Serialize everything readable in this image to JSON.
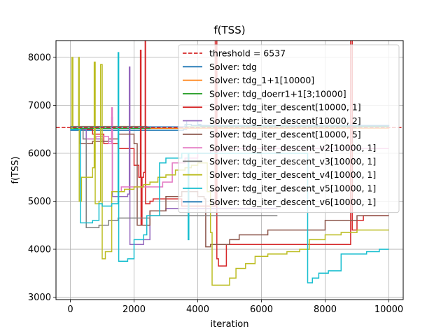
{
  "chart_data": {
    "type": "line",
    "title": "f(TSS)",
    "xlabel": "iteration",
    "ylabel": "f(TSS)",
    "xlim": [
      -450,
      10450
    ],
    "ylim": [
      2950,
      8350
    ],
    "xticks": [
      0,
      2000,
      4000,
      6000,
      8000,
      10000
    ],
    "yticks": [
      3000,
      4000,
      5000,
      6000,
      7000,
      8000
    ],
    "grid": true,
    "legend_position": "top-right",
    "threshold": {
      "name": "threshold = 6537",
      "value": 6537,
      "color": "#d62728",
      "style": "dashed"
    },
    "series": [
      {
        "name": "Solver: tdg",
        "color": "#1f77b4",
        "points": [
          [
            0,
            6480
          ],
          [
            3000,
            6480
          ],
          [
            3550,
            6500
          ],
          [
            3650,
            6680
          ],
          [
            4000,
            6600
          ],
          [
            4100,
            6560
          ],
          [
            6200,
            6560
          ],
          [
            8000,
            6570
          ],
          [
            9800,
            6570
          ],
          [
            10000,
            6570
          ]
        ]
      },
      {
        "name": "Solver: tdg_1+1[10000]",
        "color": "#ff7f0e",
        "points": [
          [
            0,
            6560
          ],
          [
            1000,
            6560
          ],
          [
            2400,
            6520
          ],
          [
            10000,
            6530
          ]
        ]
      },
      {
        "name": "Solver: tdg_doerr1+1[3;10000]",
        "color": "#2ca02c",
        "points": [
          [
            0,
            6520
          ],
          [
            2500,
            6550
          ],
          [
            10000,
            6550
          ]
        ]
      },
      {
        "name": "Solver: tdg_iter_descent[10000, 1]",
        "color": "#d62728",
        "points": [
          [
            0,
            6500
          ],
          [
            700,
            6400
          ],
          [
            1050,
            6200
          ],
          [
            1500,
            6100
          ],
          [
            2000,
            5750
          ],
          [
            2150,
            5500
          ],
          [
            2200,
            8150
          ],
          [
            2220,
            4500
          ],
          [
            2250,
            5500
          ],
          [
            2300,
            5600
          ],
          [
            2350,
            8500
          ],
          [
            2360,
            4950
          ],
          [
            2500,
            5000
          ],
          [
            2600,
            5050
          ],
          [
            3100,
            5050
          ],
          [
            3500,
            4900
          ],
          [
            4400,
            4900
          ],
          [
            4550,
            8500
          ],
          [
            4600,
            3800
          ],
          [
            4650,
            3650
          ],
          [
            4800,
            3650
          ],
          [
            4900,
            4100
          ],
          [
            5200,
            4100
          ],
          [
            6500,
            4100
          ],
          [
            8000,
            4100
          ],
          [
            8300,
            4100
          ],
          [
            8800,
            8500
          ],
          [
            8850,
            4400
          ],
          [
            9000,
            4600
          ],
          [
            9200,
            4700
          ],
          [
            9500,
            4700
          ],
          [
            10000,
            4700
          ]
        ]
      },
      {
        "name": "Solver: tdg_iter_descent[10000, 2]",
        "color": "#9467bd",
        "points": [
          [
            0,
            6500
          ],
          [
            500,
            6300
          ],
          [
            1000,
            6250
          ],
          [
            1200,
            6250
          ],
          [
            1300,
            6750
          ],
          [
            1320,
            5100
          ],
          [
            1500,
            5100
          ],
          [
            1800,
            5150
          ],
          [
            1850,
            7800
          ],
          [
            1870,
            4100
          ],
          [
            2300,
            4200
          ],
          [
            2500,
            4800
          ],
          [
            3000,
            4850
          ],
          [
            3500,
            4850
          ],
          [
            4300,
            4850
          ],
          [
            4400,
            4850
          ],
          [
            5500,
            4850
          ],
          [
            6000,
            4850
          ],
          [
            6500,
            4850
          ]
        ]
      },
      {
        "name": "Solver: tdg_iter_descent[10000, 5]",
        "color": "#8c564b",
        "points": [
          [
            0,
            6500
          ],
          [
            300,
            6200
          ],
          [
            700,
            6250
          ],
          [
            1200,
            6300
          ],
          [
            1500,
            6400
          ],
          [
            2000,
            6200
          ],
          [
            2100,
            4500
          ],
          [
            2500,
            4800
          ],
          [
            3000,
            5100
          ],
          [
            3500,
            5200
          ],
          [
            4000,
            5100
          ],
          [
            4200,
            5050
          ],
          [
            4250,
            4050
          ],
          [
            4400,
            4100
          ],
          [
            4600,
            4100
          ],
          [
            5000,
            4200
          ],
          [
            5300,
            4300
          ],
          [
            5600,
            4300
          ],
          [
            6200,
            4400
          ],
          [
            7000,
            4400
          ],
          [
            8000,
            4600
          ],
          [
            9000,
            4700
          ],
          [
            10000,
            4700
          ]
        ]
      },
      {
        "name": "Solver: tdg_iter_descent_v2[10000, 1]",
        "color": "#e377c2",
        "points": [
          [
            0,
            6500
          ],
          [
            400,
            6300
          ],
          [
            800,
            6350
          ],
          [
            1200,
            6200
          ],
          [
            1300,
            6950
          ],
          [
            1320,
            5200
          ],
          [
            1600,
            5300
          ],
          [
            1900,
            5300
          ],
          [
            2600,
            5300
          ],
          [
            2900,
            5400
          ],
          [
            3200,
            5800
          ],
          [
            3600,
            5900
          ],
          [
            4000,
            6000
          ],
          [
            4400,
            6050
          ],
          [
            4800,
            6100
          ],
          [
            5500,
            6100
          ],
          [
            8000,
            6100
          ],
          [
            10000,
            6100
          ]
        ]
      },
      {
        "name": "Solver: tdg_iter_descent_v3[10000, 1]",
        "color": "#7f7f7f",
        "points": [
          [
            0,
            6500
          ],
          [
            400,
            6300
          ],
          [
            500,
            4450
          ],
          [
            700,
            4450
          ],
          [
            900,
            4500
          ],
          [
            1200,
            4600
          ],
          [
            1500,
            4650
          ],
          [
            1900,
            4650
          ],
          [
            2200,
            4650
          ],
          [
            2500,
            4700
          ],
          [
            3200,
            4700
          ],
          [
            3900,
            4700
          ],
          [
            6500,
            4700
          ]
        ]
      },
      {
        "name": "Solver: tdg_iter_descent_v4[10000, 1]",
        "color": "#bcbd22",
        "points": [
          [
            0,
            6500
          ],
          [
            50,
            8000
          ],
          [
            80,
            6500
          ],
          [
            250,
            6500
          ],
          [
            260,
            8000
          ],
          [
            280,
            5000
          ],
          [
            300,
            5000
          ],
          [
            350,
            5500
          ],
          [
            700,
            5700
          ],
          [
            750,
            7900
          ],
          [
            780,
            4950
          ],
          [
            900,
            5000
          ],
          [
            950,
            7850
          ],
          [
            1000,
            3800
          ],
          [
            1100,
            3950
          ],
          [
            1250,
            3950
          ],
          [
            1300,
            5200
          ],
          [
            1500,
            5200
          ],
          [
            1700,
            5250
          ],
          [
            2000,
            5300
          ],
          [
            2300,
            5350
          ],
          [
            2500,
            5400
          ],
          [
            2750,
            5500
          ],
          [
            3000,
            5550
          ],
          [
            3300,
            5650
          ],
          [
            3600,
            5700
          ],
          [
            3800,
            5750
          ],
          [
            4000,
            5800
          ],
          [
            4300,
            5200
          ],
          [
            4400,
            4350
          ],
          [
            4450,
            3250
          ],
          [
            4800,
            3250
          ],
          [
            5000,
            3400
          ],
          [
            5200,
            3600
          ],
          [
            5500,
            3700
          ],
          [
            5800,
            3850
          ],
          [
            6200,
            3900
          ],
          [
            6800,
            3950
          ],
          [
            7200,
            4000
          ],
          [
            7500,
            4200
          ],
          [
            8000,
            4300
          ],
          [
            8500,
            4350
          ],
          [
            9000,
            4400
          ],
          [
            9500,
            4400
          ],
          [
            10000,
            4400
          ]
        ]
      },
      {
        "name": "Solver: tdg_iter_descent_v5[10000, 1]",
        "color": "#17becf",
        "points": [
          [
            0,
            6500
          ],
          [
            300,
            6500
          ],
          [
            320,
            4550
          ],
          [
            600,
            4550
          ],
          [
            700,
            4600
          ],
          [
            900,
            4950
          ],
          [
            1000,
            4900
          ],
          [
            1300,
            4950
          ],
          [
            1500,
            8100
          ],
          [
            1520,
            3750
          ],
          [
            1800,
            3800
          ],
          [
            2000,
            4200
          ],
          [
            2300,
            4300
          ],
          [
            2400,
            4700
          ],
          [
            2800,
            5800
          ],
          [
            3000,
            5900
          ],
          [
            3500,
            6000
          ],
          [
            3700,
            4200
          ],
          [
            3720,
            6000
          ],
          [
            4000,
            6000
          ],
          [
            7400,
            6000
          ],
          [
            7450,
            3300
          ],
          [
            7600,
            3400
          ],
          [
            7800,
            3500
          ],
          [
            8100,
            3550
          ],
          [
            8500,
            3900
          ],
          [
            9300,
            3950
          ],
          [
            9700,
            4000
          ],
          [
            10000,
            4000
          ]
        ]
      },
      {
        "name": "Solver: tdg_iter_descent_v6[10000, 1]",
        "color": "#1f77b4",
        "points": [
          [
            0,
            6550
          ],
          [
            3400,
            6550
          ],
          [
            3600,
            6600
          ],
          [
            3800,
            6580
          ],
          [
            10000,
            6560
          ]
        ]
      }
    ]
  }
}
